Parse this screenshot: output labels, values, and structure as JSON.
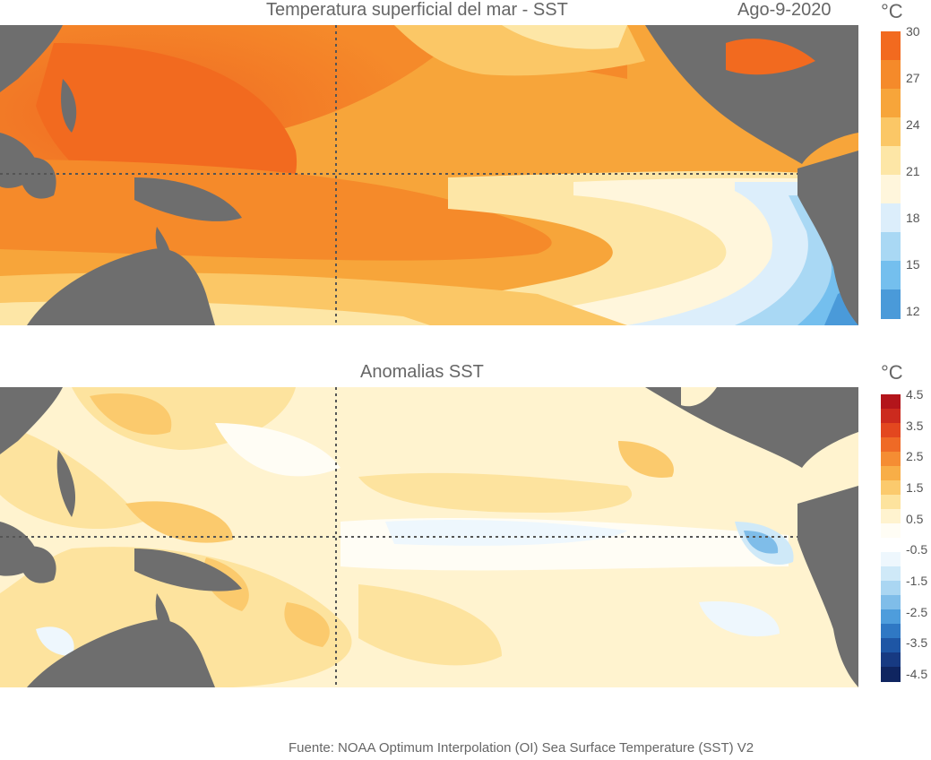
{
  "top_panel": {
    "title": "Temperatura superficial del mar - SST",
    "date": "Ago-9-2020",
    "unit": "°C",
    "colorbar_ticks": [
      "30",
      "27",
      "24",
      "21",
      "18",
      "15",
      "12"
    ],
    "colorbar_colors": [
      "#f26a1f",
      "#f58a2a",
      "#f7a53a",
      "#fbc766",
      "#fde6a6",
      "#fff6dc",
      "#dceefb",
      "#a9d8f4",
      "#74bfee",
      "#4a9ad9"
    ],
    "land_color": "#6e6e6e"
  },
  "bottom_panel": {
    "title": "Anomalias SST",
    "unit": "°C",
    "colorbar_ticks": [
      "4.5",
      "3.5",
      "2.5",
      "1.5",
      "0.5",
      "-0.5",
      "-1.5",
      "-2.5",
      "-3.5",
      "-4.5"
    ],
    "colorbar_colors": [
      "#b3151b",
      "#cc2a1e",
      "#e3471f",
      "#ef6a26",
      "#f58d33",
      "#f8ae47",
      "#fbca6d",
      "#fde39e",
      "#fff3cf",
      "#fffdf5",
      "#ffffff",
      "#eef7fd",
      "#cfe9f8",
      "#aad6f2",
      "#7fbde9",
      "#4e9ddc",
      "#2f78c4",
      "#1e56a5",
      "#173a82",
      "#0f2560"
    ],
    "land_color": "#6e6e6e"
  },
  "footer": "Fuente: NOAA Optimum Interpolation (OI) Sea Surface Temperature (SST) V2"
}
